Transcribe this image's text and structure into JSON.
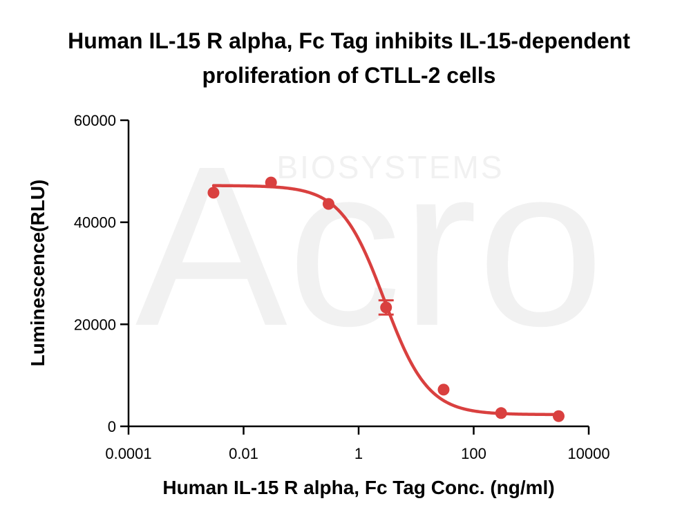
{
  "chart_data": {
    "type": "scatter",
    "title_lines": [
      "Human IL-15 R alpha, Fc Tag inhibits IL-15-dependent",
      "proliferation of CTLL-2 cells"
    ],
    "xlabel": "Human IL-15 R alpha, Fc Tag Conc. (ng/ml)",
    "ylabel": "Luminescence(RLU)",
    "x_scale": "log",
    "xlim": [
      0.0001,
      10000
    ],
    "ylim": [
      0,
      60000
    ],
    "x_ticks": [
      {
        "value": 0.0001,
        "label": "0.0001"
      },
      {
        "value": 0.01,
        "label": "0.01"
      },
      {
        "value": 1,
        "label": "1"
      },
      {
        "value": 100,
        "label": "100"
      },
      {
        "value": 10000,
        "label": "10000"
      }
    ],
    "y_ticks": [
      {
        "value": 0,
        "label": "0"
      },
      {
        "value": 20000,
        "label": "20000"
      },
      {
        "value": 40000,
        "label": "40000"
      },
      {
        "value": 60000,
        "label": "60000"
      }
    ],
    "grid": false,
    "color": "#d9403f",
    "points": [
      {
        "x": 0.003,
        "y": 45800
      },
      {
        "x": 0.03,
        "y": 47800
      },
      {
        "x": 0.3,
        "y": 43600
      },
      {
        "x": 3,
        "y": 23300,
        "err": 1400
      },
      {
        "x": 30,
        "y": 7200
      },
      {
        "x": 300,
        "y": 2600
      },
      {
        "x": 3000,
        "y": 2000
      }
    ],
    "fit": {
      "model": "4PL",
      "top": 47200,
      "bottom": 2300,
      "ec50": 2.8,
      "hill": 1.15,
      "x_from": 0.003,
      "x_to": 3000
    },
    "watermark": {
      "logo": "Acro",
      "caption": "BIOSYSTEMS"
    }
  }
}
